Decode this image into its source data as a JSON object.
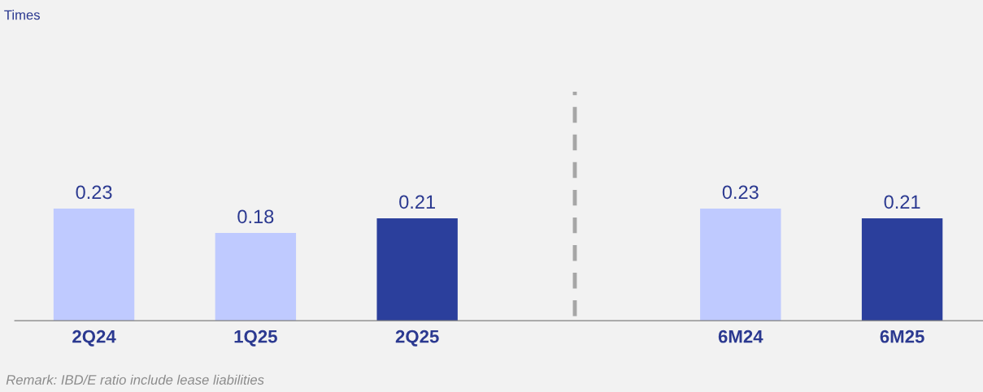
{
  "chart_data": {
    "type": "bar",
    "categories": [
      "2Q24",
      "1Q25",
      "2Q25",
      null,
      "6M24",
      "6M25"
    ],
    "values": [
      0.23,
      0.18,
      0.21,
      null,
      0.23,
      0.21
    ],
    "colors": [
      "#bfcaff",
      "#bfcaff",
      "#2b3f9c",
      "#bfcaff",
      "#bfcaff",
      "#2b3f9c"
    ],
    "ylim": [
      0,
      0.47
    ],
    "tick_labels": "x",
    "data_labels": true,
    "annotations": [
      "Times",
      "Remark: IBD/E ratio include lease liabilities"
    ]
  }
}
